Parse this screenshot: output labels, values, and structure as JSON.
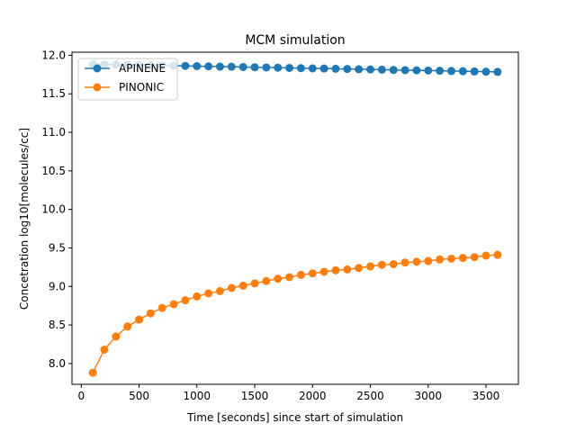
{
  "chart_data": {
    "type": "line",
    "title": "MCM simulation",
    "xlabel": "Time [seconds] since start of simulation",
    "ylabel": "Concetration log10[molecules/cc]",
    "xlim": [
      -80,
      3780
    ],
    "ylim": [
      7.73,
      12.04
    ],
    "xticks": [
      0,
      500,
      1000,
      1500,
      2000,
      2500,
      3000,
      3500
    ],
    "yticks": [
      8.0,
      8.5,
      9.0,
      9.5,
      10.0,
      10.5,
      11.0,
      11.5,
      12.0
    ],
    "legend_position": "upper-left",
    "x": [
      100,
      200,
      300,
      400,
      500,
      600,
      700,
      800,
      900,
      1000,
      1100,
      1200,
      1300,
      1400,
      1500,
      1600,
      1700,
      1800,
      1900,
      2000,
      2100,
      2200,
      2300,
      2400,
      2500,
      2600,
      2700,
      2800,
      2900,
      3000,
      3100,
      3200,
      3300,
      3400,
      3500,
      3600
    ],
    "series": [
      {
        "name": "APINENE",
        "color": "#1f77b4",
        "values": [
          11.885,
          11.882,
          11.879,
          11.876,
          11.874,
          11.871,
          11.868,
          11.865,
          11.862,
          11.859,
          11.856,
          11.853,
          11.851,
          11.848,
          11.845,
          11.842,
          11.839,
          11.836,
          11.833,
          11.83,
          11.828,
          11.825,
          11.822,
          11.819,
          11.816,
          11.813,
          11.81,
          11.807,
          11.805,
          11.802,
          11.799,
          11.796,
          11.793,
          11.79,
          11.787,
          11.784
        ]
      },
      {
        "name": "PINONIC",
        "color": "#ff7f0e",
        "values": [
          7.88,
          8.18,
          8.35,
          8.48,
          8.57,
          8.65,
          8.72,
          8.77,
          8.82,
          8.87,
          8.91,
          8.94,
          8.98,
          9.01,
          9.04,
          9.07,
          9.1,
          9.12,
          9.15,
          9.17,
          9.19,
          9.21,
          9.22,
          9.24,
          9.26,
          9.28,
          9.29,
          9.31,
          9.32,
          9.33,
          9.35,
          9.36,
          9.37,
          9.38,
          9.4,
          9.41
        ]
      }
    ]
  }
}
